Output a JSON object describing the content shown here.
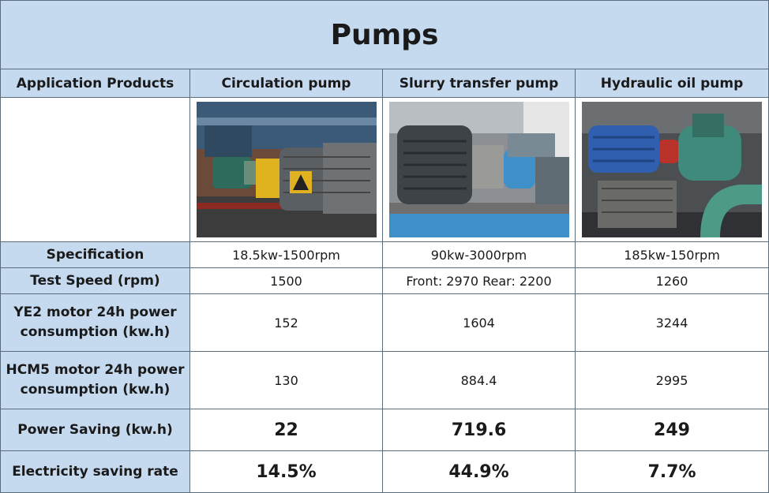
{
  "title": "Pumps",
  "header": {
    "label": "Application Products",
    "columns": [
      "Circulation pump",
      "Slurry transfer pump",
      "Hydraulic oil pump"
    ]
  },
  "photos": [
    {
      "subject": "circulation-pump-photo",
      "motor_color": "#5a5f63",
      "accent_color": "#e0b21f"
    },
    {
      "subject": "slurry-pump-photo",
      "motor_color": "#3e4347",
      "accent_color": "#3f8fc9"
    },
    {
      "subject": "hydraulic-pump-photo",
      "motor_color": "#2f5fae",
      "accent_color": "#b8322a"
    }
  ],
  "rows": [
    {
      "label": "Specification",
      "values": [
        "18.5kw-1500rpm",
        "90kw-3000rpm",
        "185kw-150rpm"
      ]
    },
    {
      "label": "Test Speed (rpm)",
      "values": [
        "1500",
        "Front: 2970 Rear: 2200",
        "1260"
      ]
    },
    {
      "label_line1": "YE2 motor 24h power",
      "label_line2": "consumption (kw.h)",
      "values": [
        "152",
        "1604",
        "3244"
      ]
    },
    {
      "label_line1": "HCM5 motor 24h power",
      "label_line2": "consumption (kw.h)",
      "values": [
        "130",
        "884.4",
        "2995"
      ]
    },
    {
      "label": "Power Saving (kw.h)",
      "values": [
        "22",
        "719.6",
        "249"
      ]
    },
    {
      "label": "Electricity saving rate",
      "values": [
        "14.5%",
        "44.9%",
        "7.7%"
      ]
    }
  ],
  "colors": {
    "header_bg": "#c5d9ef",
    "highlight_text": "#548235",
    "border": "#5a6b7a"
  }
}
